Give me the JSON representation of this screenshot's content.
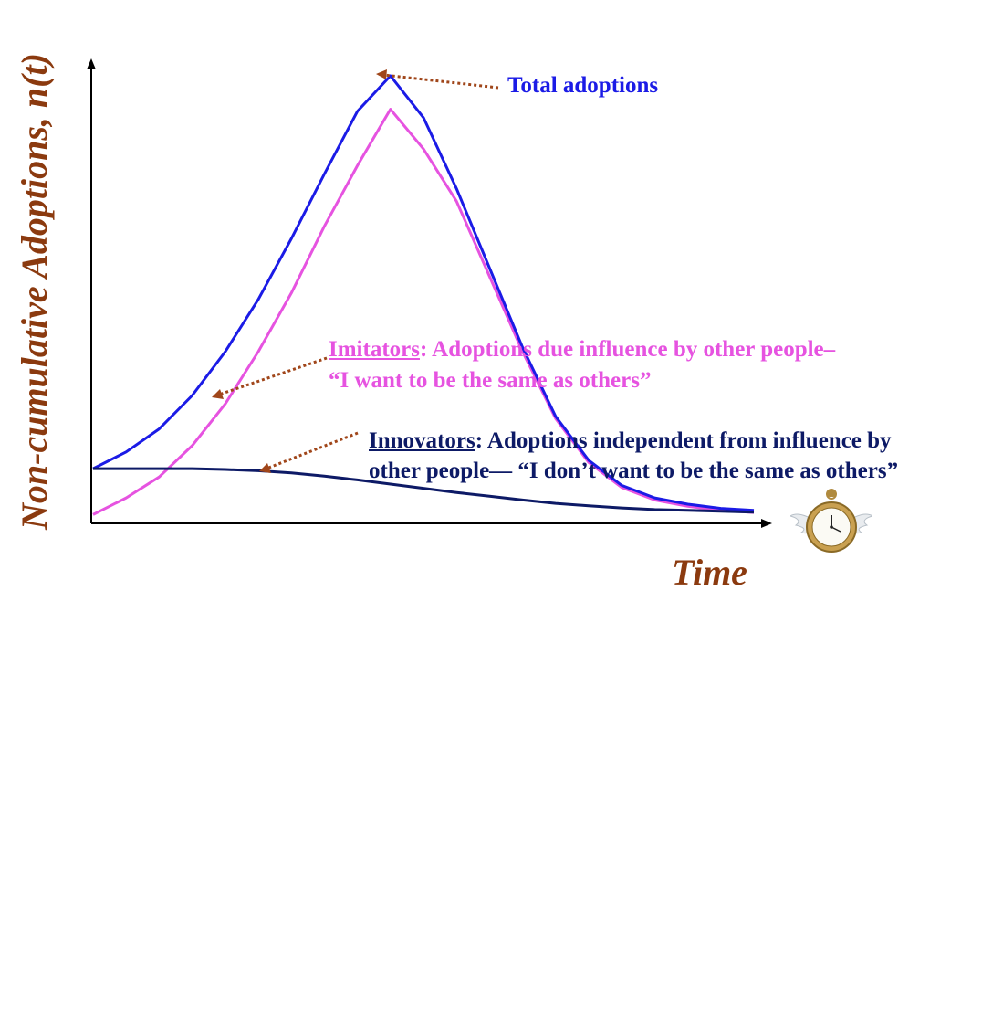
{
  "chart_data": {
    "type": "line",
    "xlabel": "Time",
    "ylabel": "Non-cumulative Adoptions, n(t)",
    "grid": false,
    "x": [
      0,
      1,
      2,
      3,
      4,
      5,
      6,
      7,
      8,
      9,
      10,
      11,
      12,
      13,
      14,
      15,
      16,
      17,
      18,
      19,
      20
    ],
    "series": [
      {
        "name": "Total adoptions",
        "color": "#1B1BE6",
        "values": [
          12,
          16,
          21.5,
          29.5,
          40,
          52.5,
          67,
          82.5,
          97.5,
          106,
          96,
          79,
          60,
          41,
          24.5,
          14,
          8,
          5,
          3.5,
          2.5,
          2
        ]
      },
      {
        "name": "Imitators",
        "color": "#E653E0",
        "values": [
          1,
          5,
          10,
          17.5,
          27.5,
          40,
          54,
          70,
          84.5,
          98,
          88.5,
          76,
          58,
          40,
          24,
          13.5,
          7.5,
          4.5,
          3,
          2,
          1.5
        ]
      },
      {
        "name": "Innovators",
        "color": "#0D1A66",
        "values": [
          12,
          12,
          12,
          12,
          11.8,
          11.5,
          11,
          10.2,
          9.3,
          8.3,
          7.3,
          6.3,
          5.4,
          4.5,
          3.7,
          3.1,
          2.6,
          2.2,
          2,
          1.8,
          1.6
        ]
      }
    ]
  },
  "annotations": {
    "total": "Total adoptions",
    "imitators_head": "Imitators",
    "imitators_rest": ": Adoptions due influence by other people–",
    "imitators_line2": "“I want to be the same as others”",
    "innovators_head": "Innovators",
    "innovators_rest": ": Adoptions independent from influence by",
    "innovators_line2": "other people— “I don’t want to be the same as others”"
  },
  "icons": {
    "clock": "winged-pocket-watch-icon"
  },
  "colors": {
    "label": "#8B3A0F",
    "arrow": "#A0461A"
  }
}
